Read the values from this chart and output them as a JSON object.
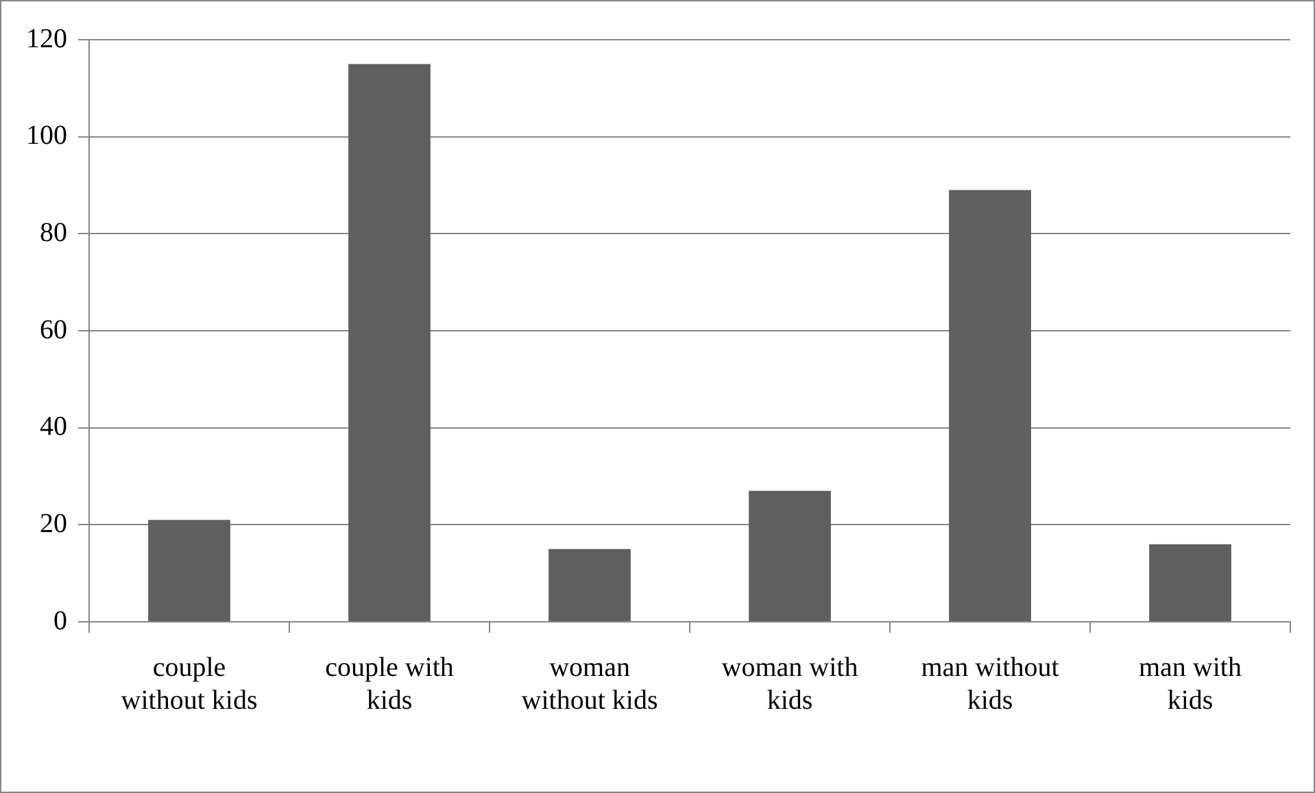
{
  "chart_data": {
    "type": "bar",
    "categories": [
      "couple without kids",
      "couple with kids",
      "woman without kids",
      "woman with kids",
      "man without kids",
      "man with kids"
    ],
    "values": [
      21,
      115,
      15,
      27,
      89,
      16
    ],
    "color": "#5f5f5f",
    "ylim": [
      0,
      120
    ],
    "yticks": [
      0,
      20,
      40,
      60,
      80,
      100,
      120
    ],
    "grid": "y",
    "legend": false
  }
}
